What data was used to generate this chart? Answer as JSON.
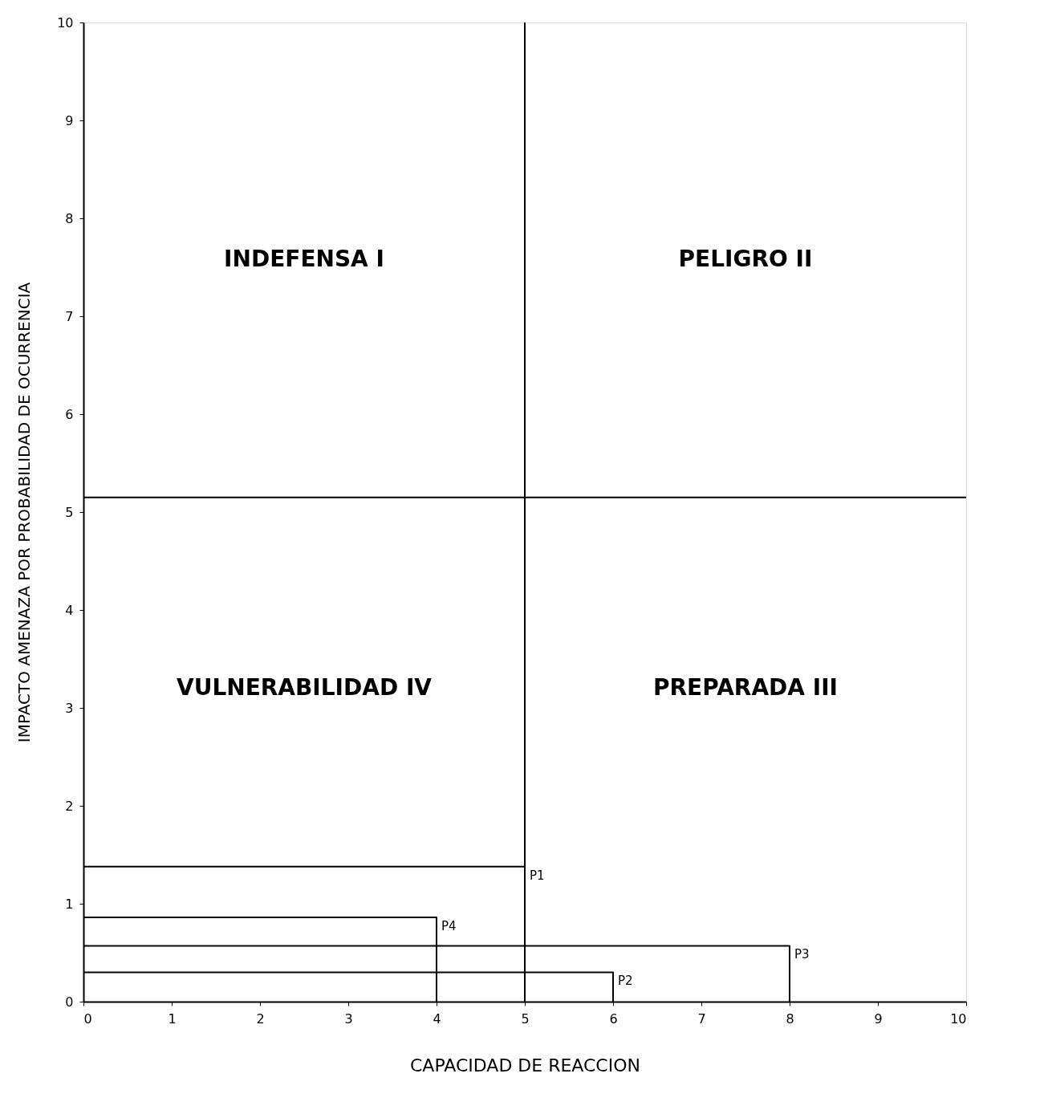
{
  "chart_data": {
    "type": "line",
    "xlabel": "CAPACIDAD DE REACCION",
    "ylabel": "IMPACTO AMENAZA POR PROBABILIDAD DE OCURRENCIA",
    "xlim": [
      0,
      10
    ],
    "ylim": [
      0,
      10
    ],
    "xticks": [
      0,
      1,
      2,
      3,
      4,
      5,
      6,
      7,
      8,
      9,
      10
    ],
    "yticks": [
      0,
      1,
      2,
      3,
      4,
      5,
      6,
      7,
      8,
      9,
      10
    ],
    "grid": false,
    "marker": "none",
    "line_style": "solid",
    "series": [
      {
        "name": "P1",
        "color": "#000000",
        "x": [
          0,
          5,
          5
        ],
        "values": [
          1.38,
          1.38,
          0
        ]
      },
      {
        "name": "P4",
        "color": "#000000",
        "x": [
          0,
          4,
          4
        ],
        "values": [
          0.86,
          0.86,
          0
        ]
      },
      {
        "name": "P3",
        "color": "#000000",
        "x": [
          0,
          8,
          8
        ],
        "values": [
          0.57,
          0.57,
          0
        ]
      },
      {
        "name": "P2",
        "color": "#000000",
        "x": [
          0,
          6,
          6
        ],
        "values": [
          0.3,
          0.3,
          0
        ]
      }
    ],
    "ref_lines": [
      {
        "axis": "x",
        "value": 5,
        "label": null,
        "color": "#000000"
      },
      {
        "axis": "y",
        "value": 5.15,
        "label": null,
        "color": "#000000"
      }
    ],
    "annotations": [
      "INDEFENSA  I",
      "PELIGRO II",
      "VULNERABILIDAD IV",
      "PREPARADA III"
    ]
  }
}
